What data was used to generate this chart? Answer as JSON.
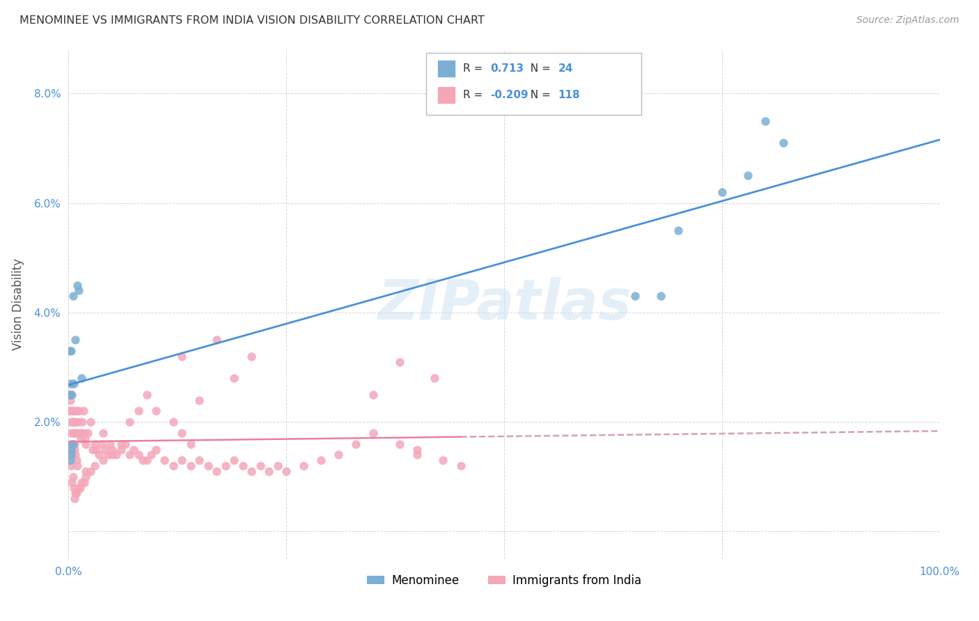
{
  "title": "MENOMINEE VS IMMIGRANTS FROM INDIA VISION DISABILITY CORRELATION CHART",
  "source": "Source: ZipAtlas.com",
  "ylabel": "Vision Disability",
  "watermark": "ZIPatlas",
  "xlim": [
    0.0,
    1.0
  ],
  "ylim": [
    -0.005,
    0.088
  ],
  "menominee_color": "#7bafd4",
  "india_color": "#f4a7b9",
  "menominee_line_color": "#4a90d9",
  "india_line_color": "#e87fa0",
  "india_line_dashed_color": "#d4a0b8",
  "R_menominee": "0.713",
  "N_menominee": "24",
  "R_india": "-0.209",
  "N_india": "118",
  "value_color": "#4a90d9",
  "menominee_x": [
    0.002,
    0.005,
    0.003,
    0.01,
    0.012,
    0.015,
    0.008,
    0.003,
    0.004,
    0.006,
    0.002,
    0.001,
    0.003,
    0.004,
    0.005,
    0.002,
    0.003,
    0.65,
    0.7,
    0.75,
    0.78,
    0.8,
    0.82,
    0.68
  ],
  "menominee_y": [
    0.025,
    0.043,
    0.033,
    0.045,
    0.044,
    0.028,
    0.035,
    0.015,
    0.016,
    0.027,
    0.025,
    0.033,
    0.025,
    0.027,
    0.016,
    0.013,
    0.014,
    0.043,
    0.055,
    0.062,
    0.065,
    0.075,
    0.071,
    0.043
  ],
  "india_x": [
    0.001,
    0.002,
    0.003,
    0.004,
    0.005,
    0.006,
    0.007,
    0.008,
    0.009,
    0.01,
    0.011,
    0.012,
    0.013,
    0.014,
    0.015,
    0.016,
    0.017,
    0.018,
    0.019,
    0.02,
    0.022,
    0.025,
    0.028,
    0.03,
    0.032,
    0.035,
    0.038,
    0.04,
    0.042,
    0.045,
    0.048,
    0.05,
    0.055,
    0.06,
    0.065,
    0.07,
    0.075,
    0.08,
    0.085,
    0.09,
    0.095,
    0.1,
    0.11,
    0.12,
    0.13,
    0.14,
    0.15,
    0.16,
    0.17,
    0.18,
    0.19,
    0.2,
    0.21,
    0.22,
    0.23,
    0.24,
    0.25,
    0.27,
    0.29,
    0.31,
    0.33,
    0.35,
    0.38,
    0.4,
    0.43,
    0.45,
    0.35,
    0.38,
    0.4,
    0.42,
    0.13,
    0.15,
    0.17,
    0.19,
    0.21,
    0.09,
    0.1,
    0.12,
    0.13,
    0.14,
    0.08,
    0.07,
    0.06,
    0.05,
    0.04,
    0.03,
    0.025,
    0.02,
    0.018,
    0.015,
    0.013,
    0.011,
    0.009,
    0.008,
    0.007,
    0.006,
    0.005,
    0.004,
    0.003,
    0.002,
    0.001,
    0.001,
    0.001,
    0.002,
    0.002,
    0.003,
    0.003,
    0.004,
    0.004,
    0.005,
    0.005,
    0.006,
    0.007,
    0.007,
    0.008,
    0.009,
    0.01,
    0.02
  ],
  "india_y": [
    0.025,
    0.022,
    0.02,
    0.025,
    0.022,
    0.02,
    0.018,
    0.02,
    0.022,
    0.018,
    0.02,
    0.022,
    0.018,
    0.017,
    0.018,
    0.02,
    0.022,
    0.018,
    0.017,
    0.016,
    0.018,
    0.02,
    0.015,
    0.016,
    0.015,
    0.014,
    0.016,
    0.018,
    0.015,
    0.014,
    0.016,
    0.015,
    0.014,
    0.015,
    0.016,
    0.014,
    0.015,
    0.014,
    0.013,
    0.013,
    0.014,
    0.015,
    0.013,
    0.012,
    0.013,
    0.012,
    0.013,
    0.012,
    0.011,
    0.012,
    0.013,
    0.012,
    0.011,
    0.012,
    0.011,
    0.012,
    0.011,
    0.012,
    0.013,
    0.014,
    0.016,
    0.018,
    0.016,
    0.014,
    0.013,
    0.012,
    0.025,
    0.031,
    0.015,
    0.028,
    0.032,
    0.024,
    0.035,
    0.028,
    0.032,
    0.025,
    0.022,
    0.02,
    0.018,
    0.016,
    0.022,
    0.02,
    0.016,
    0.014,
    0.013,
    0.012,
    0.011,
    0.01,
    0.009,
    0.009,
    0.008,
    0.008,
    0.007,
    0.007,
    0.006,
    0.008,
    0.01,
    0.009,
    0.012,
    0.015,
    0.025,
    0.027,
    0.022,
    0.025,
    0.024,
    0.018,
    0.016,
    0.014,
    0.025,
    0.022,
    0.02,
    0.018,
    0.016,
    0.015,
    0.014,
    0.013,
    0.012,
    0.011
  ]
}
